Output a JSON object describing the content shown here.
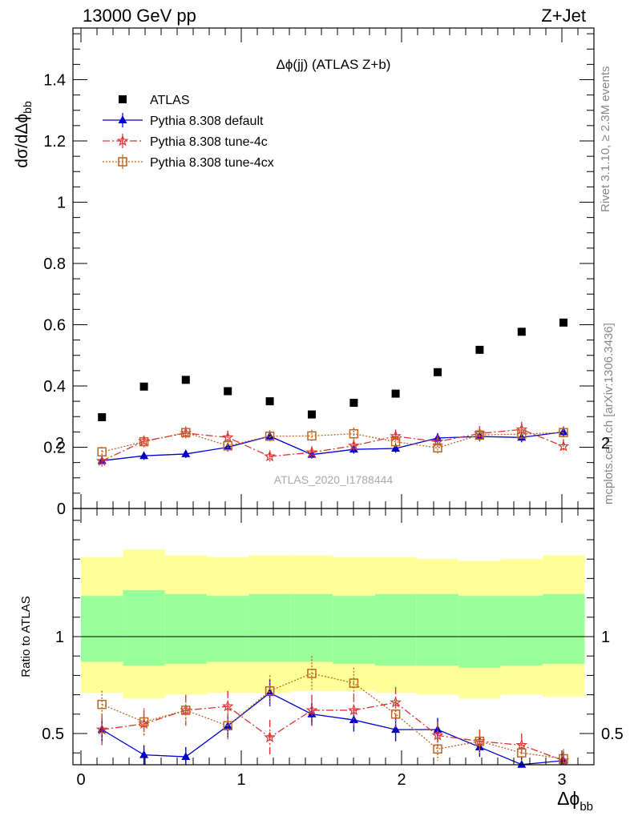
{
  "header": {
    "left": "13000 GeV pp",
    "right": "Z+Jet"
  },
  "side": {
    "rivet": "Rivet 3.1.10, ≥ 2.3M events",
    "mcplots": "mcplots.cern.ch [arXiv:1306.3436]"
  },
  "chart_data": [
    {
      "type": "scatter",
      "panel": "main",
      "title": "Δϕ(jj) (ATLAS Z+b)",
      "watermark": "ATLAS_2020_I1788444",
      "ylabel": "dσ/dΔϕbb",
      "xlim": [
        -0.05,
        3.2
      ],
      "ylim": [
        0,
        1.56
      ],
      "yticks": [
        0,
        0.2,
        0.4,
        0.6,
        0.8,
        1,
        1.2,
        1.4
      ],
      "ytick_labels": [
        "0",
        "0.2",
        "0.4",
        "0.6",
        "0.8",
        "1",
        "1.2",
        "1.4"
      ],
      "legend_position": "top-left",
      "x": [
        0.131,
        0.393,
        0.654,
        0.916,
        1.178,
        1.44,
        1.702,
        1.963,
        2.225,
        2.487,
        2.749,
        3.01
      ],
      "series": [
        {
          "name": "ATLAS",
          "color": "#000000",
          "marker": "square",
          "values": [
            0.298,
            0.398,
            0.42,
            0.383,
            0.35,
            0.307,
            0.345,
            0.375,
            0.445,
            0.518,
            0.577,
            0.607
          ]
        },
        {
          "name": "Pythia 8.308 default",
          "color": "#0000cc",
          "marker": "triangle",
          "line": "solid",
          "values": [
            0.156,
            0.172,
            0.178,
            0.2,
            0.236,
            0.176,
            0.193,
            0.196,
            0.23,
            0.235,
            0.232,
            0.25
          ],
          "errors": [
            0.012,
            0.013,
            0.013,
            0.014,
            0.016,
            0.013,
            0.014,
            0.014,
            0.016,
            0.016,
            0.016,
            0.017
          ]
        },
        {
          "name": "Pythia 8.308 tune-4c",
          "color": "#dd3333",
          "marker": "star",
          "line": "dashdot",
          "values": [
            0.155,
            0.22,
            0.246,
            0.232,
            0.17,
            0.183,
            0.205,
            0.236,
            0.218,
            0.245,
            0.258,
            0.203
          ],
          "errors": [
            0.018,
            0.018,
            0.02,
            0.022,
            0.02,
            0.02,
            0.021,
            0.022,
            0.022,
            0.024,
            0.025,
            0.023
          ]
        },
        {
          "name": "Pythia 8.308 tune-4cx",
          "color": "#bb6622",
          "marker": "open-square",
          "line": "dotted",
          "values": [
            0.185,
            0.218,
            0.248,
            0.205,
            0.236,
            0.237,
            0.244,
            0.218,
            0.198,
            0.24,
            0.243,
            0.248
          ],
          "errors": [
            0.016,
            0.018,
            0.02,
            0.018,
            0.02,
            0.02,
            0.02,
            0.019,
            0.018,
            0.02,
            0.021,
            0.021
          ]
        }
      ]
    },
    {
      "type": "scatter",
      "panel": "ratio",
      "ylabel": "Ratio to ATLAS",
      "xlabel": "Δϕbb",
      "xlim": [
        -0.05,
        3.2
      ],
      "ylim": [
        0.35,
        2.25
      ],
      "yticks": [
        0.5,
        1,
        2
      ],
      "ytick_labels": [
        "0.5",
        "1",
        "2"
      ],
      "xticks": [
        0,
        1,
        2,
        3
      ],
      "xtick_labels": [
        "0",
        "1",
        "2",
        "3"
      ],
      "reference": 1,
      "bin_edges": [
        0,
        0.262,
        0.524,
        0.785,
        1.047,
        1.309,
        1.571,
        1.833,
        2.094,
        2.356,
        2.618,
        2.88,
        3.142
      ],
      "band_inner": [
        [
          0.87,
          1.21
        ],
        [
          0.85,
          1.24
        ],
        [
          0.86,
          1.22
        ],
        [
          0.87,
          1.21
        ],
        [
          0.87,
          1.22
        ],
        [
          0.87,
          1.22
        ],
        [
          0.86,
          1.21
        ],
        [
          0.85,
          1.22
        ],
        [
          0.85,
          1.22
        ],
        [
          0.84,
          1.21
        ],
        [
          0.85,
          1.21
        ],
        [
          0.86,
          1.22
        ]
      ],
      "band_outer": [
        [
          0.71,
          1.41
        ],
        [
          0.68,
          1.45
        ],
        [
          0.7,
          1.42
        ],
        [
          0.71,
          1.41
        ],
        [
          0.71,
          1.42
        ],
        [
          0.72,
          1.42
        ],
        [
          0.72,
          1.41
        ],
        [
          0.71,
          1.41
        ],
        [
          0.7,
          1.4
        ],
        [
          0.68,
          1.39
        ],
        [
          0.7,
          1.4
        ],
        [
          0.69,
          1.42
        ]
      ],
      "band_colors": {
        "inner": "#99ff99",
        "outer": "#ffff99"
      },
      "x": [
        0.131,
        0.393,
        0.654,
        0.916,
        1.178,
        1.44,
        1.702,
        1.963,
        2.225,
        2.487,
        2.749,
        3.01
      ],
      "series": [
        {
          "name": "Pythia 8.308 default",
          "color": "#0000cc",
          "marker": "triangle",
          "line": "solid",
          "values": [
            0.52,
            0.39,
            0.38,
            0.54,
            0.71,
            0.6,
            0.57,
            0.52,
            0.52,
            0.43,
            0.34,
            0.36
          ],
          "errors": [
            0.06,
            0.05,
            0.05,
            0.06,
            0.07,
            0.06,
            0.06,
            0.06,
            0.06,
            0.05,
            0.04,
            0.04
          ]
        },
        {
          "name": "Pythia 8.308 tune-4c",
          "color": "#dd3333",
          "marker": "star",
          "line": "dashdot",
          "values": [
            0.52,
            0.55,
            0.62,
            0.64,
            0.48,
            0.62,
            0.62,
            0.66,
            0.49,
            0.46,
            0.44,
            0.36
          ],
          "errors": [
            0.08,
            0.07,
            0.08,
            0.08,
            0.09,
            0.08,
            0.08,
            0.08,
            0.07,
            0.06,
            0.06,
            0.05
          ]
        },
        {
          "name": "Pythia 8.308 tune-4cx",
          "color": "#bb6622",
          "marker": "open-square",
          "line": "dotted",
          "values": [
            0.65,
            0.56,
            0.62,
            0.54,
            0.72,
            0.81,
            0.76,
            0.6,
            0.42,
            0.46,
            0.4,
            0.37
          ],
          "errors": [
            0.07,
            0.07,
            0.08,
            0.07,
            0.08,
            0.09,
            0.08,
            0.07,
            0.06,
            0.06,
            0.05,
            0.05
          ]
        }
      ]
    }
  ]
}
